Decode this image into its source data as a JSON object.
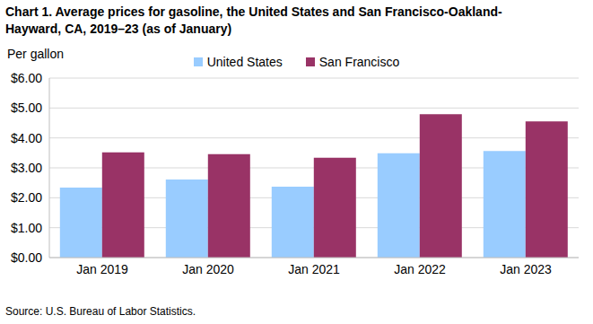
{
  "chart_data": {
    "type": "bar",
    "title": "Chart 1. Average prices for gasoline, the United States and San Francisco-Oakland-Hayward, CA, 2019–23 (as of January)",
    "y_label": "Per gallon",
    "source": "Source: U.S. Bureau of Labor Statistics.",
    "categories": [
      "Jan 2019",
      "Jan 2020",
      "Jan 2021",
      "Jan 2022",
      "Jan 2023"
    ],
    "series": [
      {
        "name": "United States",
        "color": "#99ccff",
        "values": [
          2.34,
          2.61,
          2.37,
          3.49,
          3.56
        ]
      },
      {
        "name": "San Francisco",
        "color": "#993366",
        "values": [
          3.52,
          3.46,
          3.34,
          4.79,
          4.55
        ]
      }
    ],
    "ylim": [
      0,
      6
    ],
    "yticks": [
      {
        "value": 0,
        "label": "$0.00"
      },
      {
        "value": 1,
        "label": "$1.00"
      },
      {
        "value": 2,
        "label": "$2.00"
      },
      {
        "value": 3,
        "label": "$3.00"
      },
      {
        "value": 4,
        "label": "$4.00"
      },
      {
        "value": 5,
        "label": "$5.00"
      },
      {
        "value": 6,
        "label": "$6.00"
      }
    ],
    "grid": true
  }
}
